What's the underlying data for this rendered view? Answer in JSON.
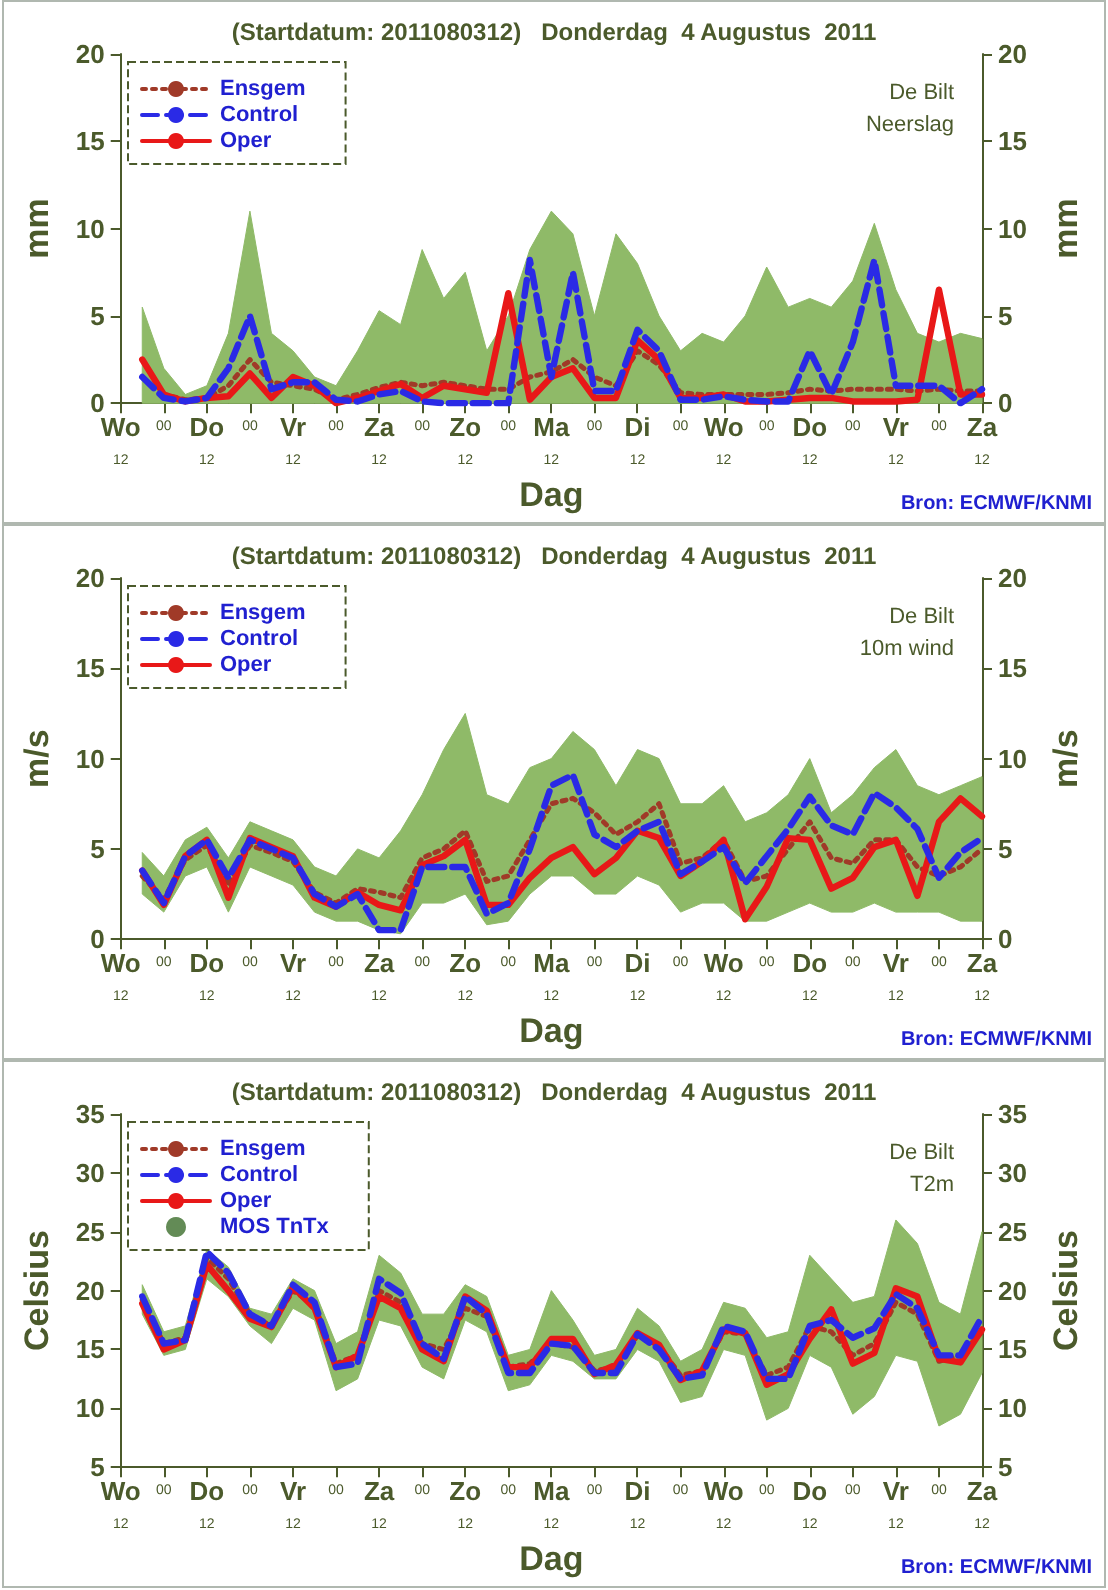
{
  "chart_data": [
    {
      "type": "line",
      "title": "(Startdatum: 2011080312)   Donderdag  4 Augustus  2011",
      "xlabel": "Dag",
      "ylabel": "mm",
      "y2label": "mm",
      "annotations": [
        "De Bilt",
        "Neerslag",
        "Bron: ECMWF/KNMI"
      ],
      "categories": [
        "Wo\n12",
        null,
        "00",
        null,
        "Do\n12",
        null,
        "00",
        null,
        "Vr\n12",
        null,
        "00",
        null,
        "Za\n12",
        null,
        "00",
        null,
        "Zo\n12",
        null,
        "00",
        null,
        "Ma\n12",
        null,
        "00",
        null,
        "Di\n12",
        null,
        "00",
        null,
        "Wo\n12",
        null,
        "00",
        null,
        "Do\n12",
        null,
        "00",
        null,
        "Vr\n12",
        null,
        "00",
        null,
        "Za\n12"
      ],
      "ylim": [
        0,
        20
      ],
      "yticks": [
        0,
        5,
        10,
        15,
        20
      ],
      "y2lim": [
        0,
        20
      ],
      "y2ticks": [
        0,
        5,
        10,
        15,
        20
      ],
      "legend": "top left",
      "series": [
        {
          "name": "Ensgem",
          "line_style": "dotted",
          "color": "#a03a28",
          "values": [
            null,
            2.5,
            0.5,
            0.2,
            0.3,
            1.0,
            2.5,
            1.2,
            1.0,
            0.8,
            0.2,
            0.5,
            0.9,
            1.2,
            1.0,
            1.2,
            1.0,
            0.8,
            0.8,
            1.5,
            1.8,
            2.5,
            1.5,
            1.0,
            3.0,
            2.2,
            0.6,
            0.5,
            0.5,
            0.5,
            0.5,
            0.6,
            0.8,
            0.7,
            0.8,
            0.8,
            0.8,
            0.7,
            0.8,
            0.7,
            0.7
          ],
          "lower": [
            null,
            0,
            0,
            0,
            0,
            0,
            0,
            0,
            0,
            0,
            0,
            0,
            0,
            0,
            0,
            0,
            0,
            0,
            0,
            0,
            0,
            0,
            0,
            0,
            0,
            0,
            0,
            0,
            0,
            0,
            0,
            0,
            0,
            0,
            0,
            0,
            0,
            0,
            0,
            0,
            0
          ],
          "upper": [
            null,
            5.5,
            2,
            0.5,
            1,
            4,
            11,
            4,
            3,
            1.5,
            1,
            3,
            5.3,
            4.5,
            8.8,
            6,
            7.5,
            3,
            5,
            8.8,
            11,
            9.7,
            5,
            9.7,
            8,
            5,
            3,
            4,
            3.5,
            5,
            7.8,
            5.5,
            6,
            5.5,
            7,
            10.3,
            6.5,
            4,
            3.5,
            4,
            3.7
          ]
        },
        {
          "name": "Control",
          "line_style": "dashed",
          "color": "#2a2ae6",
          "values": [
            null,
            1.5,
            0.3,
            0.1,
            0.3,
            2.0,
            5.0,
            0.8,
            1.2,
            1.2,
            0.2,
            0.1,
            0.5,
            0.7,
            0.1,
            0,
            0,
            0,
            0,
            8.2,
            1.5,
            7.5,
            0.7,
            0.7,
            4.2,
            3.0,
            0.2,
            0.2,
            0.4,
            0.2,
            0.1,
            0.1,
            3.0,
            0.5,
            3.5,
            8.2,
            1.0,
            1.0,
            1.0,
            0,
            0.8
          ]
        },
        {
          "name": "Oper",
          "line_style": "solid",
          "color": "#e81818",
          "values": [
            null,
            2.5,
            0.5,
            0.1,
            0.3,
            0.4,
            1.7,
            0.3,
            1.5,
            1.0,
            0,
            0.3,
            0.7,
            1.1,
            0.3,
            1.0,
            0.8,
            0.6,
            6.3,
            0.2,
            1.5,
            2.0,
            0.3,
            0.3,
            3.6,
            2.5,
            0.3,
            0.3,
            0.5,
            0.1,
            0.1,
            0.2,
            0.3,
            0.3,
            0.1,
            0.1,
            0.1,
            0.2,
            6.5,
            0.5,
            0.5
          ]
        }
      ]
    },
    {
      "type": "line",
      "title": "(Startdatum: 2011080312)   Donderdag  4 Augustus  2011",
      "xlabel": "Dag",
      "ylabel": "m/s",
      "y2label": "m/s",
      "annotations": [
        "De Bilt",
        "10m wind",
        "Bron: ECMWF/KNMI"
      ],
      "categories": [
        "Wo\n12",
        null,
        "00",
        null,
        "Do\n12",
        null,
        "00",
        null,
        "Vr\n12",
        null,
        "00",
        null,
        "Za\n12",
        null,
        "00",
        null,
        "Zo\n12",
        null,
        "00",
        null,
        "Ma\n12",
        null,
        "00",
        null,
        "Di\n12",
        null,
        "00",
        null,
        "Wo\n12",
        null,
        "00",
        null,
        "Do\n12",
        null,
        "00",
        null,
        "Vr\n12",
        null,
        "00",
        null,
        "Za\n12"
      ],
      "ylim": [
        0,
        20
      ],
      "yticks": [
        0,
        5,
        10,
        15,
        20
      ],
      "y2lim": [
        0,
        20
      ],
      "y2ticks": [
        0,
        5,
        10,
        15,
        20
      ],
      "legend": "top left",
      "series": [
        {
          "name": "Ensgem",
          "line_style": "dotted",
          "color": "#a03a28",
          "values": [
            null,
            3.5,
            2.2,
            4.4,
            5.2,
            3.0,
            5.2,
            4.8,
            4.3,
            2.6,
            2.0,
            2.8,
            2.6,
            2.3,
            4.5,
            5.0,
            6.0,
            3.2,
            3.5,
            5.5,
            7.5,
            7.8,
            7.0,
            5.8,
            6.5,
            7.5,
            4.2,
            4.5,
            5.5,
            3.2,
            3.5,
            5.0,
            6.5,
            4.5,
            4.2,
            5.5,
            5.5,
            4.0,
            3.5,
            4.0,
            5.0
          ],
          "lower": [
            null,
            2.5,
            1.5,
            3.5,
            4.0,
            1.5,
            4.0,
            3.5,
            3.0,
            1.5,
            1.0,
            1.0,
            0.5,
            0.3,
            2.0,
            2.0,
            2.5,
            0.8,
            1.0,
            2.5,
            3.5,
            3.5,
            2.5,
            2.5,
            3.5,
            3.0,
            1.5,
            2.0,
            2.0,
            1.0,
            1.0,
            1.5,
            2.0,
            1.5,
            1.5,
            2.0,
            1.5,
            1.5,
            1.5,
            1.0,
            1.0
          ],
          "upper": [
            null,
            4.8,
            3.5,
            5.5,
            6.2,
            4.5,
            6.5,
            6.0,
            5.5,
            4.0,
            3.5,
            5.0,
            4.5,
            6.0,
            8.0,
            10.5,
            12.5,
            8.0,
            7.5,
            9.5,
            10.0,
            11.5,
            10.5,
            8.5,
            10.5,
            10.0,
            7.5,
            7.5,
            8.5,
            6.5,
            7.0,
            8.0,
            10.0,
            7.0,
            8.0,
            9.5,
            10.5,
            8.5,
            8.0,
            8.5,
            9.0
          ]
        },
        {
          "name": "Control",
          "line_style": "dashed",
          "color": "#2a2ae6",
          "values": [
            null,
            3.8,
            2.0,
            4.6,
            5.5,
            3.4,
            5.5,
            5.0,
            4.5,
            2.5,
            1.8,
            2.5,
            0.5,
            0.5,
            4.0,
            4.0,
            4.0,
            1.4,
            2.0,
            5.0,
            8.5,
            9.1,
            5.8,
            5.1,
            6.0,
            6.5,
            3.6,
            4.3,
            5.1,
            3.1,
            4.6,
            6.1,
            7.9,
            6.3,
            5.8,
            8.1,
            7.3,
            6.1,
            3.4,
            4.8,
            5.6
          ]
        },
        {
          "name": "Oper",
          "line_style": "solid",
          "color": "#e81818",
          "values": [
            null,
            3.8,
            1.9,
            4.6,
            5.5,
            2.3,
            5.6,
            5.1,
            4.6,
            2.3,
            1.8,
            2.6,
            1.9,
            1.6,
            4.1,
            4.6,
            5.5,
            1.9,
            1.9,
            3.4,
            4.5,
            5.1,
            3.6,
            4.5,
            6.0,
            5.6,
            3.5,
            4.3,
            5.5,
            1.1,
            2.9,
            5.6,
            5.5,
            2.8,
            3.4,
            5.1,
            5.5,
            2.4,
            6.5,
            7.8,
            6.8
          ]
        }
      ]
    },
    {
      "type": "line",
      "title": "(Startdatum: 2011080312)   Donderdag  4 Augustus  2011",
      "xlabel": "Dag",
      "ylabel": "Celsius",
      "y2label": "Celsius",
      "annotations": [
        "De Bilt",
        "T2m",
        "Bron: ECMWF/KNMI"
      ],
      "categories": [
        "Wo\n12",
        null,
        "00",
        null,
        "Do\n12",
        null,
        "00",
        null,
        "Vr\n12",
        null,
        "00",
        null,
        "Za\n12",
        null,
        "00",
        null,
        "Zo\n12",
        null,
        "00",
        null,
        "Ma\n12",
        null,
        "00",
        null,
        "Di\n12",
        null,
        "00",
        null,
        "Wo\n12",
        null,
        "00",
        null,
        "Do\n12",
        null,
        "00",
        null,
        "Vr\n12",
        null,
        "00",
        null,
        "Za\n12"
      ],
      "ylim": [
        5,
        35
      ],
      "yticks": [
        5,
        10,
        15,
        20,
        25,
        30,
        35
      ],
      "y2lim": [
        5,
        35
      ],
      "y2ticks": [
        5,
        10,
        15,
        20,
        25,
        30,
        35
      ],
      "legend": "top left",
      "series": [
        {
          "name": "Ensgem",
          "line_style": "dotted",
          "color": "#a03a28",
          "values": [
            null,
            19.2,
            15.5,
            16.0,
            22.8,
            21.0,
            18.0,
            17.0,
            20.0,
            18.8,
            13.8,
            14.5,
            20.0,
            19.0,
            15.5,
            15.0,
            18.5,
            17.8,
            13.5,
            13.8,
            15.5,
            15.2,
            13.2,
            13.5,
            16.2,
            15.3,
            12.8,
            13.2,
            16.5,
            16.3,
            12.8,
            13.5,
            17.0,
            16.5,
            14.5,
            15.5,
            19.0,
            18.0,
            14.0,
            14.5,
            16.5
          ],
          "lower": [
            null,
            18,
            14.5,
            15,
            21,
            19.5,
            17,
            15.5,
            18.5,
            17.5,
            11.5,
            12.5,
            17.5,
            17,
            13.5,
            12.5,
            17.5,
            16.5,
            11.5,
            12,
            14.5,
            14,
            12.5,
            12.5,
            15,
            14,
            10.5,
            11,
            15,
            14.5,
            9,
            10,
            14.5,
            13.5,
            9.5,
            11,
            14.5,
            14,
            8.5,
            9.5,
            13
          ],
          "upper": [
            null,
            20.5,
            16.5,
            17,
            23.5,
            22,
            18.5,
            18,
            21,
            20,
            15.5,
            16.5,
            23,
            21.5,
            18,
            18,
            20.5,
            19.5,
            14.5,
            15,
            20,
            17.5,
            14.5,
            15,
            18.5,
            17,
            14,
            15,
            19,
            18.5,
            16,
            16.5,
            23,
            21,
            19,
            19.5,
            26,
            24,
            19,
            18,
            25
          ]
        },
        {
          "name": "Control",
          "line_style": "dashed",
          "color": "#2a2ae6",
          "values": [
            null,
            19.5,
            15.5,
            15.8,
            23.3,
            21.5,
            18.0,
            17.0,
            20.5,
            19.0,
            13.5,
            13.8,
            21.0,
            19.8,
            15.5,
            14.2,
            19.5,
            18.0,
            13.0,
            13.0,
            15.5,
            15.3,
            13.0,
            13.0,
            16.3,
            15.0,
            12.5,
            12.8,
            17.0,
            16.5,
            12.5,
            12.5,
            17.0,
            17.5,
            16.0,
            16.8,
            19.7,
            18.5,
            14.5,
            14.5,
            17.8
          ]
        },
        {
          "name": "Oper",
          "line_style": "solid",
          "color": "#e81818",
          "values": [
            null,
            18.9,
            15.0,
            15.8,
            22.2,
            20.0,
            17.6,
            16.9,
            20.3,
            18.5,
            13.5,
            14.5,
            19.5,
            18.5,
            15.0,
            14.0,
            19.5,
            18.3,
            13.5,
            13.5,
            15.9,
            15.9,
            12.9,
            13.7,
            16.4,
            15.4,
            12.4,
            13.2,
            16.7,
            16.4,
            12.0,
            12.9,
            15.9,
            18.4,
            13.8,
            14.7,
            20.2,
            19.5,
            14.2,
            13.9,
            16.7
          ]
        },
        {
          "name": "MOS TnTx",
          "type": "scatter",
          "marker": "circle",
          "color": "#3c6e2c",
          "values": [
            null,
            null,
            null,
            null,
            null,
            null,
            null,
            null,
            null,
            null,
            null,
            null,
            null,
            null,
            null,
            null,
            null,
            null,
            null,
            null,
            null,
            null,
            null,
            null,
            null,
            null,
            null,
            null,
            null,
            null,
            null,
            null,
            null,
            null,
            null,
            null,
            null,
            null,
            null,
            null,
            null
          ]
        }
      ]
    }
  ]
}
